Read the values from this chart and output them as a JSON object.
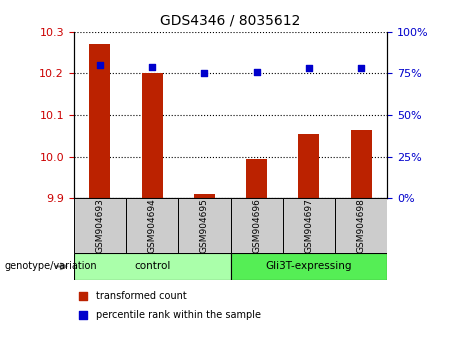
{
  "title": "GDS4346 / 8035612",
  "samples": [
    "GSM904693",
    "GSM904694",
    "GSM904695",
    "GSM904696",
    "GSM904697",
    "GSM904698"
  ],
  "bar_values": [
    10.27,
    10.2,
    9.91,
    9.995,
    10.055,
    10.063
  ],
  "percentile_values": [
    80,
    79,
    75,
    76,
    78,
    78
  ],
  "ylim_left": [
    9.9,
    10.3
  ],
  "ylim_right": [
    0,
    100
  ],
  "yticks_left": [
    9.9,
    10.0,
    10.1,
    10.2,
    10.3
  ],
  "yticks_right": [
    0,
    25,
    50,
    75,
    100
  ],
  "bar_color": "#bb2200",
  "dot_color": "#0000cc",
  "groups": [
    {
      "label": "control",
      "count": 3,
      "color": "#aaffaa"
    },
    {
      "label": "Gli3T-expressing",
      "count": 3,
      "color": "#55ee55"
    }
  ],
  "legend_items": [
    {
      "label": "transformed count",
      "color": "#bb2200"
    },
    {
      "label": "percentile rank within the sample",
      "color": "#0000cc"
    }
  ],
  "genotype_label": "genotype/variation",
  "tick_label_color_left": "#cc0000",
  "tick_label_color_right": "#0000cc"
}
